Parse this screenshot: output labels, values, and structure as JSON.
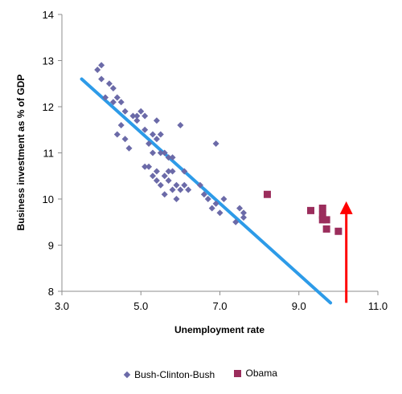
{
  "chart_data": {
    "type": "scatter",
    "title": "",
    "xlabel": "Unemployment rate",
    "ylabel": "Business investment as % of GDP",
    "xlim": [
      3.0,
      11.0
    ],
    "ylim": [
      8,
      14
    ],
    "xticks": [
      "3.0",
      "5.0",
      "7.0",
      "9.0",
      "11.0"
    ],
    "yticks": [
      "8",
      "9",
      "10",
      "11",
      "12",
      "13",
      "14"
    ],
    "grid": false,
    "legend_position": "bottom",
    "series": [
      {
        "name": "Bush-Clinton-Bush",
        "marker": "diamond",
        "color": "#6b6aa8",
        "points": [
          [
            3.9,
            12.8
          ],
          [
            4.0,
            12.9
          ],
          [
            4.0,
            12.6
          ],
          [
            4.1,
            12.2
          ],
          [
            4.2,
            12.5
          ],
          [
            4.3,
            12.4
          ],
          [
            4.3,
            12.1
          ],
          [
            4.4,
            12.2
          ],
          [
            4.5,
            12.1
          ],
          [
            4.4,
            11.4
          ],
          [
            4.5,
            11.6
          ],
          [
            4.6,
            11.9
          ],
          [
            4.6,
            11.3
          ],
          [
            4.7,
            11.1
          ],
          [
            4.8,
            11.8
          ],
          [
            4.9,
            11.7
          ],
          [
            4.9,
            11.8
          ],
          [
            5.0,
            11.9
          ],
          [
            5.1,
            11.8
          ],
          [
            5.1,
            11.5
          ],
          [
            5.2,
            11.2
          ],
          [
            5.3,
            11.4
          ],
          [
            5.3,
            11.0
          ],
          [
            5.4,
            11.7
          ],
          [
            5.4,
            11.3
          ],
          [
            5.5,
            11.0
          ],
          [
            5.5,
            11.4
          ],
          [
            5.6,
            11.0
          ],
          [
            5.7,
            10.9
          ],
          [
            5.7,
            10.6
          ],
          [
            5.8,
            10.9
          ],
          [
            5.1,
            10.7
          ],
          [
            5.2,
            10.7
          ],
          [
            5.3,
            10.5
          ],
          [
            5.4,
            10.6
          ],
          [
            5.4,
            10.4
          ],
          [
            5.5,
            10.3
          ],
          [
            5.6,
            10.5
          ],
          [
            5.6,
            10.1
          ],
          [
            5.7,
            10.4
          ],
          [
            5.8,
            10.6
          ],
          [
            5.8,
            10.2
          ],
          [
            5.9,
            10.3
          ],
          [
            5.9,
            10.0
          ],
          [
            6.0,
            10.2
          ],
          [
            6.0,
            11.6
          ],
          [
            6.1,
            10.6
          ],
          [
            6.1,
            10.3
          ],
          [
            6.2,
            10.2
          ],
          [
            6.5,
            10.3
          ],
          [
            6.6,
            10.1
          ],
          [
            6.7,
            10.0
          ],
          [
            6.8,
            9.8
          ],
          [
            6.9,
            11.2
          ],
          [
            6.9,
            9.9
          ],
          [
            7.0,
            9.7
          ],
          [
            7.1,
            10.0
          ],
          [
            7.4,
            9.5
          ],
          [
            7.5,
            9.8
          ],
          [
            7.6,
            9.7
          ],
          [
            7.6,
            9.6
          ]
        ]
      },
      {
        "name": "Obama",
        "marker": "square",
        "color": "#9b2d5c",
        "points": [
          [
            8.2,
            10.1
          ],
          [
            9.3,
            9.75
          ],
          [
            9.6,
            9.8
          ],
          [
            9.6,
            9.65
          ],
          [
            9.6,
            9.55
          ],
          [
            9.7,
            9.55
          ],
          [
            9.7,
            9.35
          ],
          [
            10.0,
            9.3
          ]
        ]
      }
    ],
    "trendline": {
      "color": "#2d9be8",
      "from": [
        3.5,
        12.6
      ],
      "to": [
        9.8,
        7.75
      ]
    },
    "annotation_arrow": {
      "color": "#ff0000",
      "x": 10.2,
      "from_y": 7.75,
      "to_y": 9.95
    }
  }
}
